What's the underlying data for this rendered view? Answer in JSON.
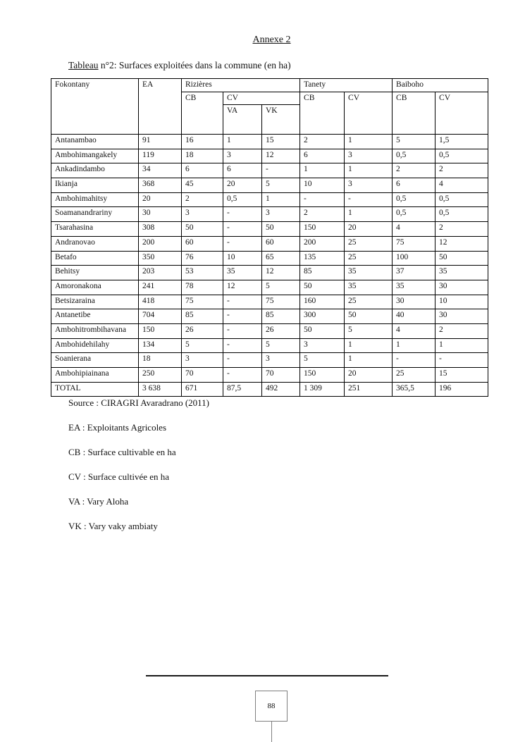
{
  "header": {
    "annexe_title": "Annexe 2",
    "caption_word": "Tableau",
    "caption_rest": " n°2: Surfaces exploitées dans la commune (en ha)"
  },
  "table": {
    "header": {
      "fokontany": "Fokontany",
      "ea": "EA",
      "rizieres": "Rizières",
      "tanety": "Tanety",
      "baiboho": "Baiboho",
      "cb": "CB",
      "cv": "CV",
      "va": "VA",
      "vk": "VK"
    },
    "columns": [
      "Fokontany",
      "EA",
      "Rizières CB",
      "Rizières CV VA",
      "Rizières CV VK",
      "Tanety CB",
      "Tanety CV",
      "Baiboho CB",
      "Baiboho CV"
    ],
    "rows": [
      [
        "Antanambao",
        "91",
        "16",
        "1",
        "15",
        "2",
        "1",
        "5",
        "1,5"
      ],
      [
        "Ambohimangakely",
        "119",
        "18",
        "3",
        "12",
        "6",
        "3",
        "0,5",
        "0,5"
      ],
      [
        "Ankadindambo",
        "34",
        "6",
        "6",
        "-",
        "1",
        "1",
        "2",
        "2"
      ],
      [
        "Ikianja",
        "368",
        "45",
        "20",
        "5",
        "10",
        "3",
        "6",
        "4"
      ],
      [
        "Ambohimahitsy",
        "20",
        "2",
        "0,5",
        "1",
        "-",
        "-",
        "0,5",
        "0,5"
      ],
      [
        "Soamanandrariny",
        "30",
        "3",
        "-",
        "3",
        "2",
        "1",
        "0,5",
        "0,5"
      ],
      [
        "Tsarahasina",
        "308",
        "50",
        "-",
        "50",
        "150",
        "20",
        "4",
        "2"
      ],
      [
        "Andranovao",
        "200",
        "60",
        "-",
        "60",
        "200",
        "25",
        "75",
        "12"
      ],
      [
        "Betafo",
        "350",
        "76",
        "10",
        "65",
        "135",
        "25",
        "100",
        "50"
      ],
      [
        "Behitsy",
        "203",
        "53",
        "35",
        "12",
        "85",
        "35",
        "37",
        "35"
      ],
      [
        "Amoronakona",
        "241",
        "78",
        "12",
        "5",
        "50",
        "35",
        "35",
        "30"
      ],
      [
        "Betsizaraina",
        "418",
        "75",
        "-",
        "75",
        "160",
        "25",
        "30",
        "10"
      ],
      [
        "Antanetibe",
        "704",
        "85",
        "-",
        "85",
        "300",
        "50",
        "40",
        "30"
      ],
      [
        "Ambohitrombihavana",
        "150",
        "26",
        "-",
        "26",
        "50",
        "5",
        "4",
        "2"
      ],
      [
        "Ambohidehilahy",
        "134",
        "5",
        "-",
        "5",
        "3",
        "1",
        "1",
        "1"
      ],
      [
        "Soanierana",
        "18",
        "3",
        "-",
        "3",
        "5",
        "1",
        "-",
        "-"
      ],
      [
        "Ambohipiainana",
        "250",
        "70",
        "-",
        "70",
        "150",
        "20",
        "25",
        "15"
      ],
      [
        "TOTAL",
        "3 638",
        "671",
        "87,5",
        "492",
        "1 309",
        "251",
        "365,5",
        "196"
      ]
    ]
  },
  "source_line": "Source : CIRAGRI Avaradrano (2011)",
  "legend": [
    "EA : Exploitants Agricoles",
    "CB : Surface cultivable en ha",
    "CV : Surface cultivée en ha",
    "VA : Vary Aloha",
    "VK : Vary vaky ambiaty"
  ],
  "legend_tops": [
    599,
    634,
    669,
    704,
    739
  ],
  "footer": {
    "page_number": "88"
  }
}
